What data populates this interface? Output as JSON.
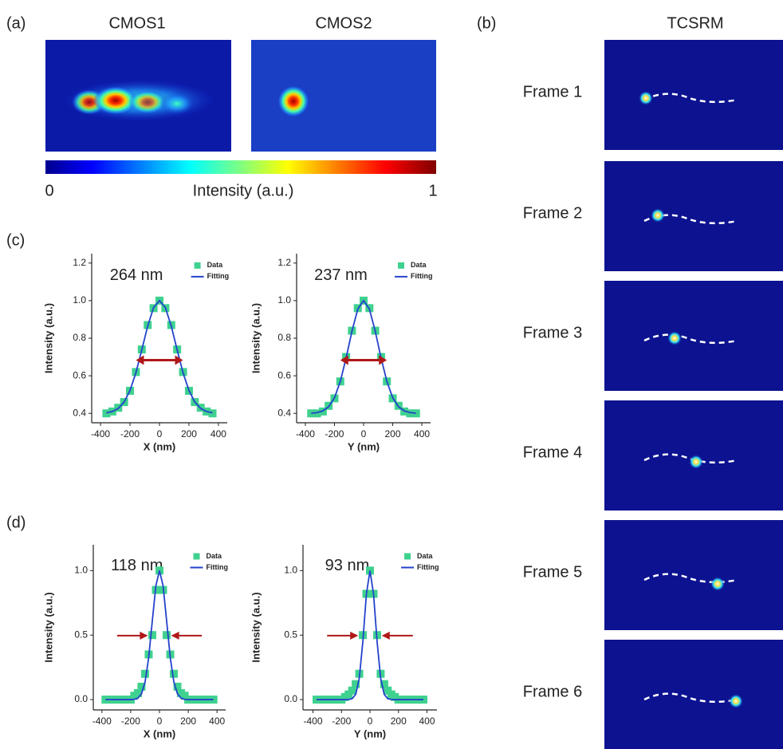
{
  "panel_labels": [
    "(a)",
    "(b)",
    "(c)",
    "(d)"
  ],
  "cmos": {
    "titles": [
      "CMOS1",
      "CMOS2"
    ],
    "colorbar": {
      "label": "Intensity  (a.u.)",
      "ticks": [
        0,
        1
      ]
    }
  },
  "tcsrm": {
    "title": "TCSRM",
    "frames": [
      "Frame 1",
      "Frame 2",
      "Frame 3",
      "Frame 4",
      "Frame 5",
      "Frame 6"
    ]
  },
  "chart_data": [
    {
      "type": "line",
      "annotation": "264 nm",
      "xlabel": "X (nm)",
      "ylabel": "Intensity (a.u.)",
      "legend": "upper right",
      "x": [
        -360,
        -320,
        -280,
        -240,
        -200,
        -160,
        -120,
        -80,
        -40,
        0,
        40,
        80,
        120,
        160,
        200,
        240,
        280,
        320,
        360
      ],
      "series": [
        {
          "name": "Data",
          "color": "#3fd18f",
          "marker": "square",
          "values": [
            0.4,
            0.41,
            0.43,
            0.46,
            0.52,
            0.62,
            0.74,
            0.87,
            0.96,
            1.0,
            0.96,
            0.87,
            0.74,
            0.62,
            0.52,
            0.46,
            0.43,
            0.41,
            0.4
          ]
        },
        {
          "name": "Fitting",
          "color": "#2442cc",
          "marker": "line",
          "values": [
            0.403,
            0.41,
            0.426,
            0.46,
            0.522,
            0.616,
            0.738,
            0.865,
            0.963,
            1,
            0.963,
            0.865,
            0.738,
            0.616,
            0.522,
            0.46,
            0.426,
            0.41,
            0.403
          ]
        }
      ],
      "xlim": [
        -460,
        460
      ],
      "xticks": [
        -400,
        -200,
        0,
        200,
        400
      ],
      "ylim": [
        0.35,
        1.25
      ],
      "yticks": [
        0.4,
        0.6,
        0.8,
        {
          "value": 1,
          "label": "1.0"
        },
        1.2
      ]
    },
    {
      "type": "line",
      "annotation": "237 nm",
      "xlabel": "Y (nm)",
      "ylabel": "Intensity (a.u.)",
      "legend": "upper right",
      "x": [
        -360,
        -320,
        -280,
        -240,
        -200,
        -160,
        -120,
        -80,
        -40,
        0,
        40,
        80,
        120,
        160,
        200,
        240,
        280,
        320,
        360
      ],
      "series": [
        {
          "name": "Data",
          "color": "#3fd18f",
          "marker": "square",
          "values": [
            0.4,
            0.4,
            0.41,
            0.44,
            0.48,
            0.57,
            0.7,
            0.84,
            0.96,
            1.0,
            0.96,
            0.84,
            0.7,
            0.57,
            0.48,
            0.44,
            0.41,
            0.4,
            0.4
          ]
        },
        {
          "name": "Fitting",
          "color": "#2442cc",
          "marker": "line",
          "values": [
            0.401,
            0.404,
            0.413,
            0.435,
            0.483,
            0.57,
            0.695,
            0.837,
            0.955,
            1,
            0.955,
            0.837,
            0.695,
            0.57,
            0.483,
            0.435,
            0.413,
            0.404,
            0.401
          ]
        }
      ],
      "xlim": [
        -460,
        460
      ],
      "xticks": [
        -400,
        -200,
        0,
        200,
        400
      ],
      "ylim": [
        0.35,
        1.25
      ],
      "yticks": [
        0.4,
        0.6,
        0.8,
        {
          "value": 1,
          "label": "1.0"
        },
        1.2
      ]
    },
    {
      "type": "line",
      "annotation": "118 nm",
      "xlabel": "X (nm)",
      "ylabel": "Intensity (a.u.)",
      "legend": "upper right",
      "x": [
        -375,
        -350,
        -325,
        -300,
        -275,
        -250,
        -225,
        -200,
        -175,
        -150,
        -125,
        -100,
        -75,
        -50,
        -25,
        0,
        25,
        50,
        75,
        100,
        125,
        150,
        175,
        200,
        225,
        250,
        275,
        300,
        325,
        350,
        375
      ],
      "series": [
        {
          "name": "Data",
          "color": "#3fd18f",
          "marker": "square",
          "values": [
            0,
            0,
            0,
            0,
            0,
            0,
            0,
            0,
            0.03,
            0.05,
            0.1,
            0.2,
            0.35,
            0.5,
            0.85,
            1.0,
            0.85,
            0.5,
            0.35,
            0.2,
            0.1,
            0.05,
            0.03,
            0,
            0,
            0,
            0,
            0,
            0,
            0,
            0
          ]
        },
        {
          "name": "Fitting",
          "color": "#2442cc",
          "marker": "line",
          "values": [
            0,
            0,
            0,
            0,
            0,
            0,
            0,
            0,
            0.002,
            0.011,
            0.045,
            0.137,
            0.326,
            0.608,
            0.883,
            1,
            0.883,
            0.608,
            0.326,
            0.137,
            0.045,
            0.011,
            0.002,
            0,
            0,
            0,
            0,
            0,
            0,
            0,
            0
          ]
        }
      ],
      "xlim": [
        -460,
        460
      ],
      "xticks": [
        -400,
        -200,
        0,
        200,
        400
      ],
      "ylim": [
        -0.08,
        1.2
      ],
      "yticks": [
        {
          "value": 0,
          "label": "0.0"
        },
        0.5,
        {
          "value": 1,
          "label": "1.0"
        }
      ]
    },
    {
      "type": "line",
      "annotation": "93 nm",
      "xlabel": "Y (nm)",
      "ylabel": "Intensity (a.u.)",
      "legend": "upper right",
      "x": [
        -375,
        -350,
        -325,
        -300,
        -275,
        -250,
        -225,
        -200,
        -175,
        -150,
        -125,
        -100,
        -75,
        -50,
        -25,
        0,
        25,
        50,
        75,
        100,
        125,
        150,
        175,
        200,
        225,
        250,
        275,
        300,
        325,
        350,
        375
      ],
      "series": [
        {
          "name": "Data",
          "color": "#3fd18f",
          "marker": "square",
          "values": [
            0,
            0,
            0,
            0,
            0,
            0,
            0,
            0,
            0.02,
            0.04,
            0.07,
            0.12,
            0.2,
            0.5,
            0.82,
            1.0,
            0.82,
            0.5,
            0.2,
            0.12,
            0.07,
            0.04,
            0.02,
            0,
            0,
            0,
            0,
            0,
            0,
            0,
            0
          ]
        },
        {
          "name": "Fitting",
          "color": "#2442cc",
          "marker": "line",
          "values": [
            0,
            0,
            0,
            0,
            0,
            0,
            0,
            0,
            0,
            0.001,
            0.007,
            0.041,
            0.165,
            0.449,
            0.819,
            1,
            0.819,
            0.449,
            0.165,
            0.041,
            0.007,
            0.001,
            0,
            0,
            0,
            0,
            0,
            0,
            0,
            0,
            0
          ]
        }
      ],
      "xlim": [
        -470,
        470
      ],
      "xticks": [
        -400,
        -200,
        0,
        200,
        400
      ],
      "ylim": [
        -0.08,
        1.2
      ],
      "yticks": [
        {
          "value": 0,
          "label": "0.0"
        },
        0.5,
        {
          "value": 1,
          "label": "1.0"
        }
      ]
    }
  ]
}
